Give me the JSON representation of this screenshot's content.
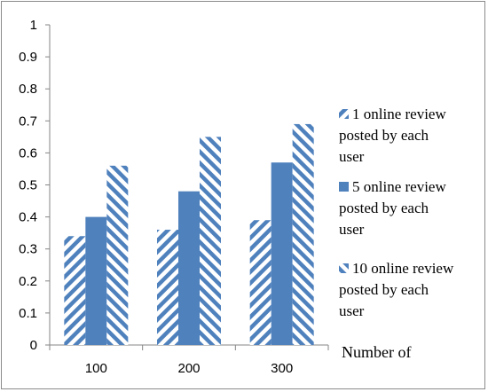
{
  "chart_data": {
    "type": "bar",
    "categories": [
      "100",
      "200",
      "300"
    ],
    "xlabel": "Number of",
    "ylabel": "",
    "ylim": [
      0,
      1
    ],
    "yticks": [
      "0",
      "0.1",
      "0.2",
      "0.3",
      "0.4",
      "0.5",
      "0.6",
      "0.7",
      "0.8",
      "0.9",
      "1"
    ],
    "grid": false,
    "legend_position": "right",
    "series": [
      {
        "name": "1 online review posted by each user",
        "name_lines": [
          "1 online review",
          "posted by each",
          "user"
        ],
        "values": [
          0.34,
          0.36,
          0.39
        ],
        "pattern": "diagonal-down",
        "color": "#4f81bd"
      },
      {
        "name": "5 online review posted by each user",
        "name_lines": [
          "5 online review",
          "posted by each",
          "user"
        ],
        "values": [
          0.4,
          0.48,
          0.57
        ],
        "pattern": "solid",
        "color": "#4f81bd"
      },
      {
        "name": "10 online review posted by each user",
        "name_lines": [
          "10 online review",
          "posted by each",
          "user"
        ],
        "values": [
          0.56,
          0.65,
          0.69
        ],
        "pattern": "diagonal-up",
        "color": "#4f81bd"
      }
    ]
  }
}
